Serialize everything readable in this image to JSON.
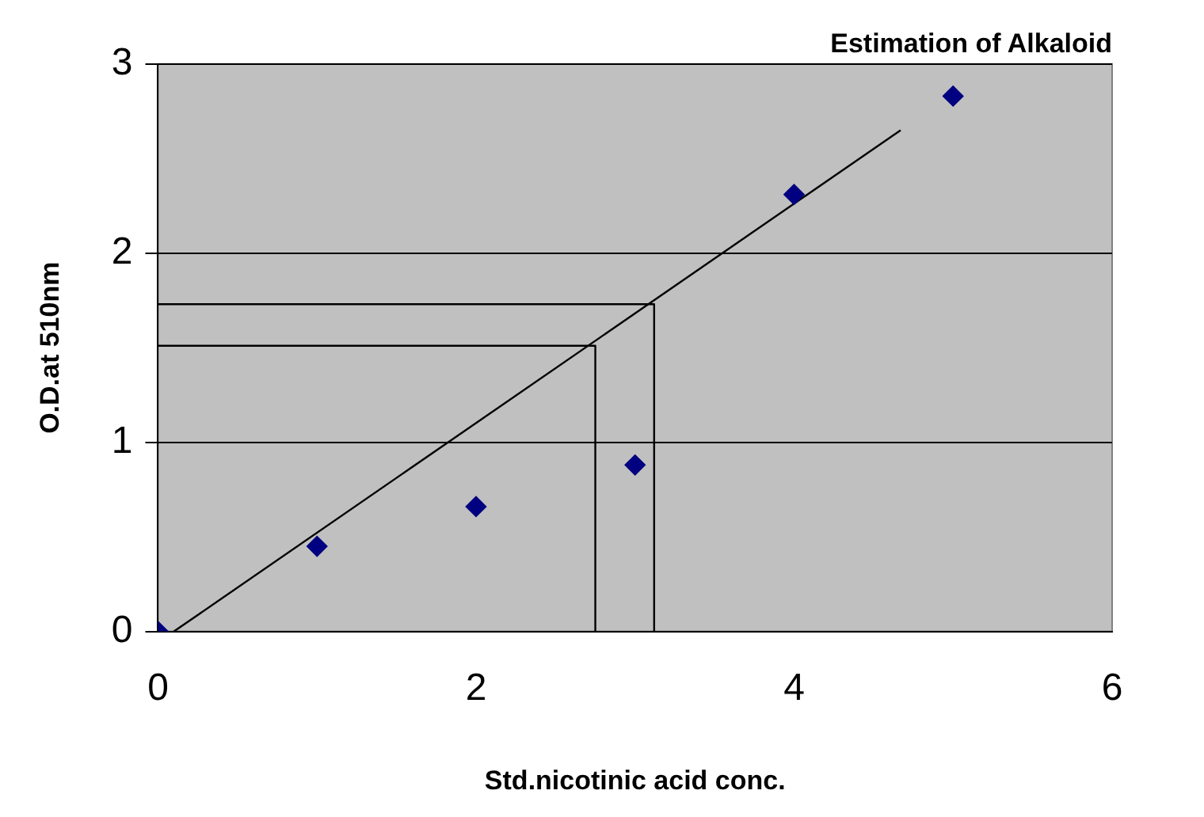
{
  "chart_data": {
    "type": "scatter",
    "title": "Estimation of Alkaloid",
    "xlabel": "Std.nicotinic acid conc.",
    "ylabel": "O.D.at 510nm",
    "series": [
      {
        "color": "#000080",
        "marker": "diamond",
        "x": [
          0,
          1,
          2,
          3,
          4,
          5
        ],
        "values": [
          0,
          0.45,
          0.66,
          0.88,
          2.31,
          2.83
        ]
      },
      {
        "type": "line",
        "color": "#000000",
        "marker": "none",
        "x": [
          0.1,
          4.67
        ],
        "values": [
          0,
          2.65
        ]
      },
      {
        "type": "line",
        "color": "#000000",
        "marker": "none",
        "x": [
          0,
          3.12,
          3.12
        ],
        "values": [
          1.73,
          1.73,
          0
        ]
      },
      {
        "type": "line",
        "color": "#000000",
        "marker": "none",
        "x": [
          0,
          2.75,
          2.75
        ],
        "values": [
          1.51,
          1.51,
          0
        ]
      }
    ],
    "xlim": [
      0,
      6
    ],
    "xticks": [
      0,
      2,
      4,
      6
    ],
    "ylim": [
      0,
      3
    ],
    "yticks": [
      0,
      1,
      2,
      3
    ],
    "grid": "y",
    "legend": false
  }
}
